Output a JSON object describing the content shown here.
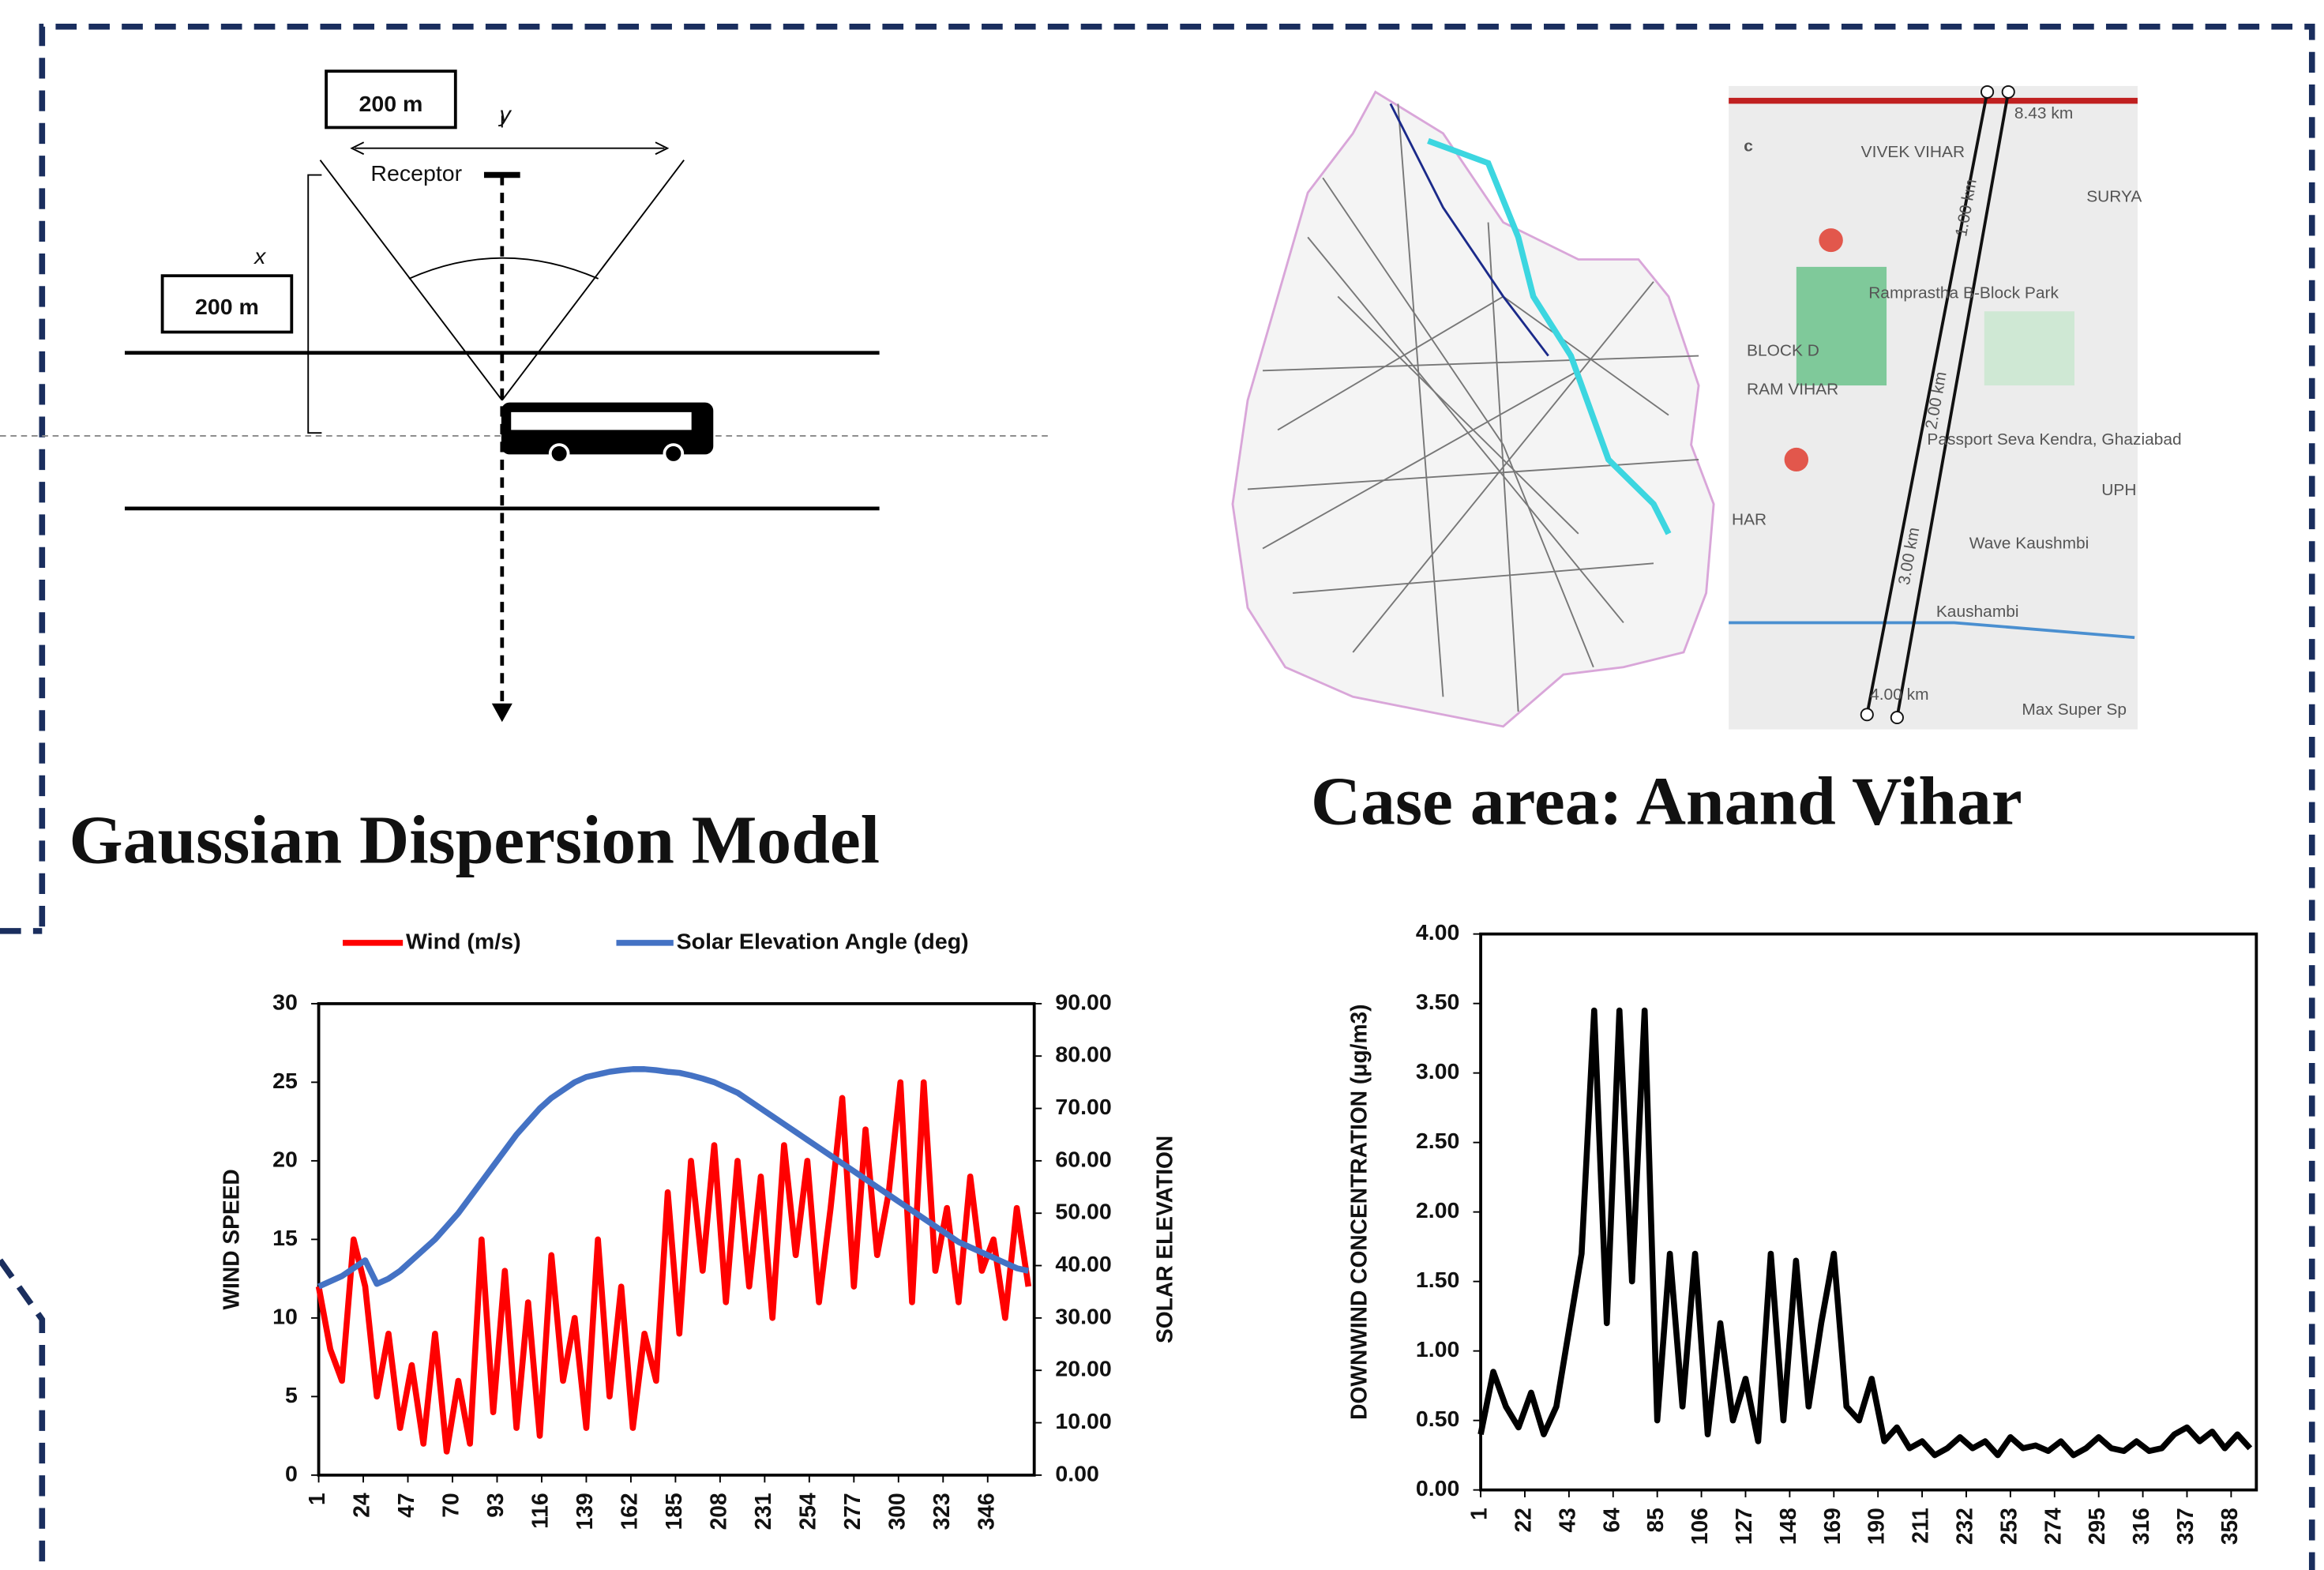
{
  "diagram": {
    "width_label": "200 m",
    "y_label": "y",
    "receptor_label": "Receptor",
    "x_label": "x",
    "distance_label": "200 m",
    "caption": "Gaussian Dispersion Model"
  },
  "map": {
    "caption": "Case area: Anand Vihar",
    "labels": [
      "VIVEK VIHAR",
      "Ramprastha B-Block Park",
      "BLOCK D",
      "RAM VIHAR",
      "Passport Seva Kendra, Ghaziabad",
      "HAR",
      "Wave Kaushmbi",
      "Kaushambi",
      "Max Super Sp",
      "SURYA",
      "UPH",
      "c",
      "8.43 km",
      "1.00 km",
      "2.00 km",
      "3.00 km",
      "4.00 km"
    ]
  },
  "chart_data": [
    {
      "type": "line",
      "ylabel": "WIND SPEED",
      "y2label": "SOLAR ELEVATION",
      "legend": "top",
      "x": [
        1,
        7,
        13,
        19,
        25,
        31,
        37,
        43,
        49,
        55,
        61,
        67,
        73,
        79,
        85,
        91,
        97,
        103,
        109,
        115,
        121,
        127,
        133,
        139,
        145,
        151,
        157,
        163,
        169,
        175,
        181,
        187,
        193,
        199,
        205,
        211,
        217,
        223,
        229,
        235,
        241,
        247,
        253,
        259,
        265,
        271,
        277,
        283,
        289,
        295,
        301,
        307,
        313,
        319,
        325,
        331,
        337,
        343,
        349,
        355,
        361,
        367
      ],
      "xlim": [
        1,
        370
      ],
      "xticks": [
        1,
        24,
        47,
        70,
        93,
        116,
        139,
        162,
        185,
        208,
        231,
        254,
        277,
        300,
        323,
        346
      ],
      "ylim": [
        0,
        30
      ],
      "yticks": [
        0,
        5,
        10,
        15,
        20,
        25,
        30
      ],
      "y2lim": [
        0,
        90
      ],
      "y2ticks": [
        {
          "value": 0,
          "label": "0.00"
        },
        {
          "value": 10,
          "label": "10.00"
        },
        {
          "value": 20,
          "label": "20.00"
        },
        {
          "value": 30,
          "label": "30.00"
        },
        {
          "value": 40,
          "label": "40.00"
        },
        {
          "value": 50,
          "label": "50.00"
        },
        {
          "value": 60,
          "label": "60.00"
        },
        {
          "value": 70,
          "label": "70.00"
        },
        {
          "value": 80,
          "label": "80.00"
        },
        {
          "value": 90,
          "label": "90.00"
        }
      ],
      "series": [
        {
          "name": "Wind (m/s)",
          "color": "#ff0000",
          "values": [
            12,
            8,
            6,
            15,
            12,
            5,
            9,
            3,
            7,
            2,
            9,
            1.5,
            6,
            2,
            15,
            4,
            13,
            3,
            11,
            2.5,
            14,
            6,
            10,
            3,
            15,
            5,
            12,
            3,
            9,
            6,
            18,
            9,
            20,
            13,
            21,
            11,
            20,
            12,
            19,
            10,
            21,
            14,
            20,
            11,
            17,
            24,
            12,
            22,
            14,
            18,
            25,
            11,
            25,
            13,
            17,
            11,
            19,
            13,
            15,
            10,
            17,
            12
          ]
        },
        {
          "name": "Solar Elevation Angle (deg)",
          "color": "#4472c4",
          "axis": "y2",
          "values": [
            36,
            37,
            38,
            39.5,
            41,
            36.5,
            37.5,
            39,
            41,
            43,
            45,
            47.5,
            50,
            53,
            56,
            59,
            62,
            65,
            67.5,
            70,
            72,
            73.5,
            75,
            76,
            76.5,
            77,
            77.3,
            77.5,
            77.5,
            77.3,
            77,
            76.8,
            76.3,
            75.7,
            75,
            74,
            73,
            71.5,
            70,
            68.5,
            67,
            65.5,
            64,
            62.5,
            61,
            59.5,
            58,
            56.5,
            55,
            53.5,
            52,
            50.5,
            49,
            47.5,
            46,
            44.5,
            43.5,
            42.5,
            41.5,
            40.5,
            39.5,
            39
          ]
        }
      ]
    },
    {
      "type": "line",
      "ylabel": "DOWNWIND CONCENTRATION (μg/m3)",
      "x": [
        1,
        7,
        13,
        19,
        25,
        31,
        37,
        43,
        49,
        55,
        61,
        67,
        73,
        79,
        85,
        91,
        97,
        103,
        109,
        115,
        121,
        127,
        133,
        139,
        145,
        151,
        157,
        163,
        169,
        175,
        181,
        187,
        193,
        199,
        205,
        211,
        217,
        223,
        229,
        235,
        241,
        247,
        253,
        259,
        265,
        271,
        277,
        283,
        289,
        295,
        301,
        307,
        313,
        319,
        325,
        331,
        337,
        343,
        349,
        355,
        361,
        367
      ],
      "xlim": [
        1,
        370
      ],
      "xticks": [
        1,
        22,
        43,
        64,
        85,
        106,
        127,
        148,
        169,
        190,
        211,
        232,
        253,
        274,
        295,
        316,
        337,
        358
      ],
      "ylim": [
        0,
        4
      ],
      "yticks": [
        {
          "value": 0,
          "label": "0.00"
        },
        {
          "value": 0.5,
          "label": "0.50"
        },
        {
          "value": 1,
          "label": "1.00"
        },
        {
          "value": 1.5,
          "label": "1.50"
        },
        {
          "value": 2,
          "label": "2.00"
        },
        {
          "value": 2.5,
          "label": "2.50"
        },
        {
          "value": 3,
          "label": "3.00"
        },
        {
          "value": 3.5,
          "label": "3.50"
        },
        {
          "value": 4,
          "label": "4.00"
        }
      ],
      "series": [
        {
          "color": "#000000",
          "values": [
            0.4,
            0.85,
            0.6,
            0.45,
            0.7,
            0.4,
            0.6,
            1.15,
            1.7,
            3.45,
            1.2,
            3.45,
            1.5,
            3.45,
            0.5,
            1.7,
            0.6,
            1.7,
            0.4,
            1.2,
            0.5,
            0.8,
            0.35,
            1.7,
            0.5,
            1.65,
            0.6,
            1.2,
            1.7,
            0.6,
            0.5,
            0.8,
            0.35,
            0.45,
            0.3,
            0.35,
            0.25,
            0.3,
            0.38,
            0.3,
            0.35,
            0.25,
            0.38,
            0.3,
            0.32,
            0.28,
            0.35,
            0.25,
            0.3,
            0.38,
            0.3,
            0.28,
            0.35,
            0.28,
            0.3,
            0.4,
            0.45,
            0.35,
            0.42,
            0.3,
            0.4,
            0.3
          ]
        }
      ]
    }
  ]
}
